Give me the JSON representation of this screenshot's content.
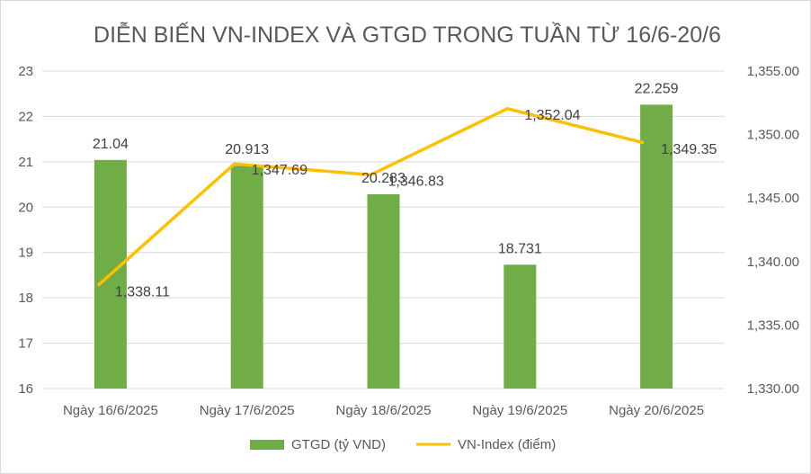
{
  "chart_data": {
    "title": "DIỄN BIẾN VN-INDEX VÀ GTGD TRONG TUẦN TỪ 16/6-20/6",
    "categories": [
      "Ngày 16/6/2025",
      "Ngày 17/6/2025",
      "Ngày 18/6/2025",
      "Ngày 19/6/2025",
      "Ngày 20/6/2025"
    ],
    "series": [
      {
        "name": "GTGD (tỷ VND)",
        "type": "bar",
        "axis": "left",
        "color": "#70ad47",
        "values": [
          21.04,
          20.913,
          20.283,
          18.731,
          22.259
        ],
        "labels": [
          "21.04",
          "20.913",
          "20.283",
          "18.731",
          "22.259"
        ]
      },
      {
        "name": "VN-Index (điểm)",
        "type": "line",
        "axis": "right",
        "color": "#ffc000",
        "values": [
          1338.11,
          1347.69,
          1346.83,
          1352.04,
          1349.35
        ],
        "labels": [
          "1,338.11",
          "1,347.69",
          "1,346.83",
          "1,352.04",
          "1,349.35"
        ]
      }
    ],
    "y_left": {
      "min": 16,
      "max": 23,
      "ticks": [
        "16",
        "17",
        "18",
        "19",
        "20",
        "21",
        "22",
        "23"
      ]
    },
    "y_right": {
      "min": 1330,
      "max": 1355,
      "ticks": [
        "1,330.00",
        "1,335.00",
        "1,340.00",
        "1,345.00",
        "1,350.00",
        "1,355.00"
      ]
    },
    "grid": true,
    "legend_position": "bottom",
    "gridline_color": "#d9d9d9"
  }
}
